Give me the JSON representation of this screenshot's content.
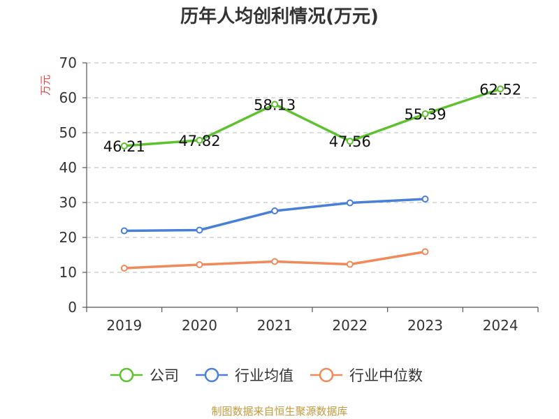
{
  "chart_data": {
    "type": "line",
    "title": "历年人均创利情况(万元)",
    "ylabel": "万元",
    "xlabel": "",
    "categories": [
      "2019",
      "2020",
      "2021",
      "2022",
      "2023",
      "2024"
    ],
    "ylim": [
      0,
      70
    ],
    "yticks": [
      "0",
      "10",
      "20",
      "30",
      "40",
      "50",
      "60",
      "70"
    ],
    "grid": true,
    "legend_position": "bottom",
    "series": [
      {
        "name": "公司",
        "color": "#5cc22e",
        "values": [
          46.21,
          47.82,
          58.13,
          47.56,
          55.39,
          62.52
        ],
        "labels": [
          "46.21",
          "47.82",
          "58.13",
          "47.56",
          "55.39",
          "62.52"
        ]
      },
      {
        "name": "行业均值",
        "color": "#4a7fd8",
        "values": [
          21.9,
          22.1,
          27.6,
          29.9,
          31.0,
          null
        ]
      },
      {
        "name": "行业中位数",
        "color": "#f08a5a",
        "values": [
          11.2,
          12.2,
          13.1,
          12.3,
          15.9,
          null
        ]
      }
    ]
  },
  "footer": {
    "source": "制图数据来自恒生聚源数据库"
  }
}
